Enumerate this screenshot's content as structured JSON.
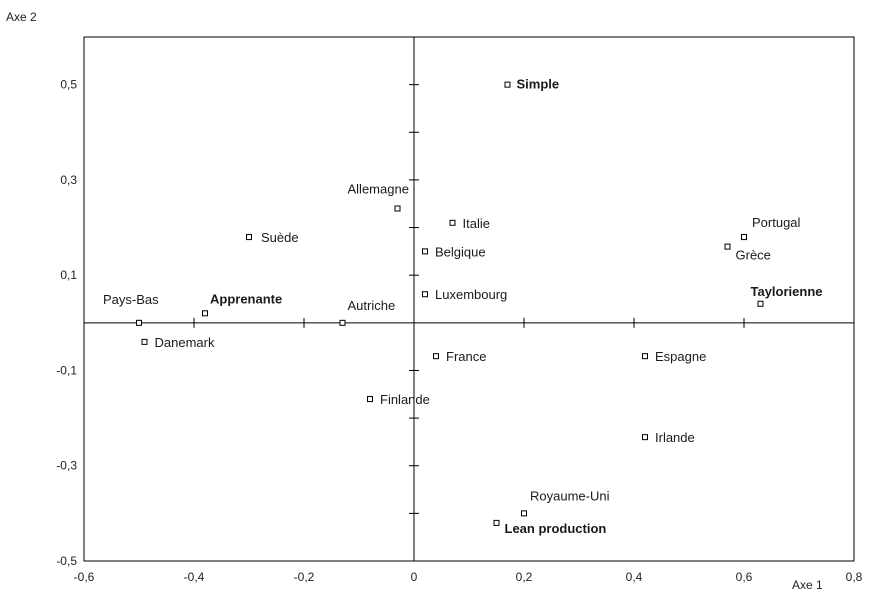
{
  "chart_data": {
    "type": "scatter",
    "title": "",
    "xlabel": "Axe 1",
    "ylabel": "Axe 2",
    "xlim": [
      -0.6,
      0.8
    ],
    "ylim": [
      -0.5,
      0.6
    ],
    "x_tick_labels": [
      "-0,6",
      "-0,4",
      "-0,2",
      "0",
      "0,2",
      "0,4",
      "0,6",
      "0,8"
    ],
    "y_tick_labels": [
      "0,5",
      "0,3",
      "0,1",
      "-0,1",
      "-0,3",
      "-0,5"
    ],
    "grid": false,
    "points": [
      {
        "label": "Simple",
        "x": 0.17,
        "y": 0.5,
        "bold": true
      },
      {
        "label": "Allemagne",
        "x": -0.03,
        "y": 0.24,
        "bold": false
      },
      {
        "label": "Italie",
        "x": 0.07,
        "y": 0.21,
        "bold": false
      },
      {
        "label": "Suède",
        "x": -0.3,
        "y": 0.18,
        "bold": false
      },
      {
        "label": "Portugal",
        "x": 0.6,
        "y": 0.18,
        "bold": false
      },
      {
        "label": "Grèce",
        "x": 0.57,
        "y": 0.16,
        "bold": false
      },
      {
        "label": "Belgique",
        "x": 0.02,
        "y": 0.15,
        "bold": false
      },
      {
        "label": "Luxembourg",
        "x": 0.02,
        "y": 0.06,
        "bold": false
      },
      {
        "label": "Taylorienne",
        "x": 0.63,
        "y": 0.04,
        "bold": true
      },
      {
        "label": "Apprenante",
        "x": -0.38,
        "y": 0.02,
        "bold": true
      },
      {
        "label": "Pays-Bas",
        "x": -0.5,
        "y": 0.0,
        "bold": false
      },
      {
        "label": "Autriche",
        "x": -0.13,
        "y": 0.0,
        "bold": false
      },
      {
        "label": "Danemark",
        "x": -0.49,
        "y": -0.04,
        "bold": false
      },
      {
        "label": "France",
        "x": 0.04,
        "y": -0.07,
        "bold": false
      },
      {
        "label": "Espagne",
        "x": 0.42,
        "y": -0.07,
        "bold": false
      },
      {
        "label": "Finlande",
        "x": -0.08,
        "y": -0.16,
        "bold": false
      },
      {
        "label": "Irlande",
        "x": 0.42,
        "y": -0.24,
        "bold": false
      },
      {
        "label": "Royaume-Uni",
        "x": 0.2,
        "y": -0.4,
        "bold": false
      },
      {
        "label": "Lean production",
        "x": 0.15,
        "y": -0.42,
        "bold": true
      }
    ]
  }
}
